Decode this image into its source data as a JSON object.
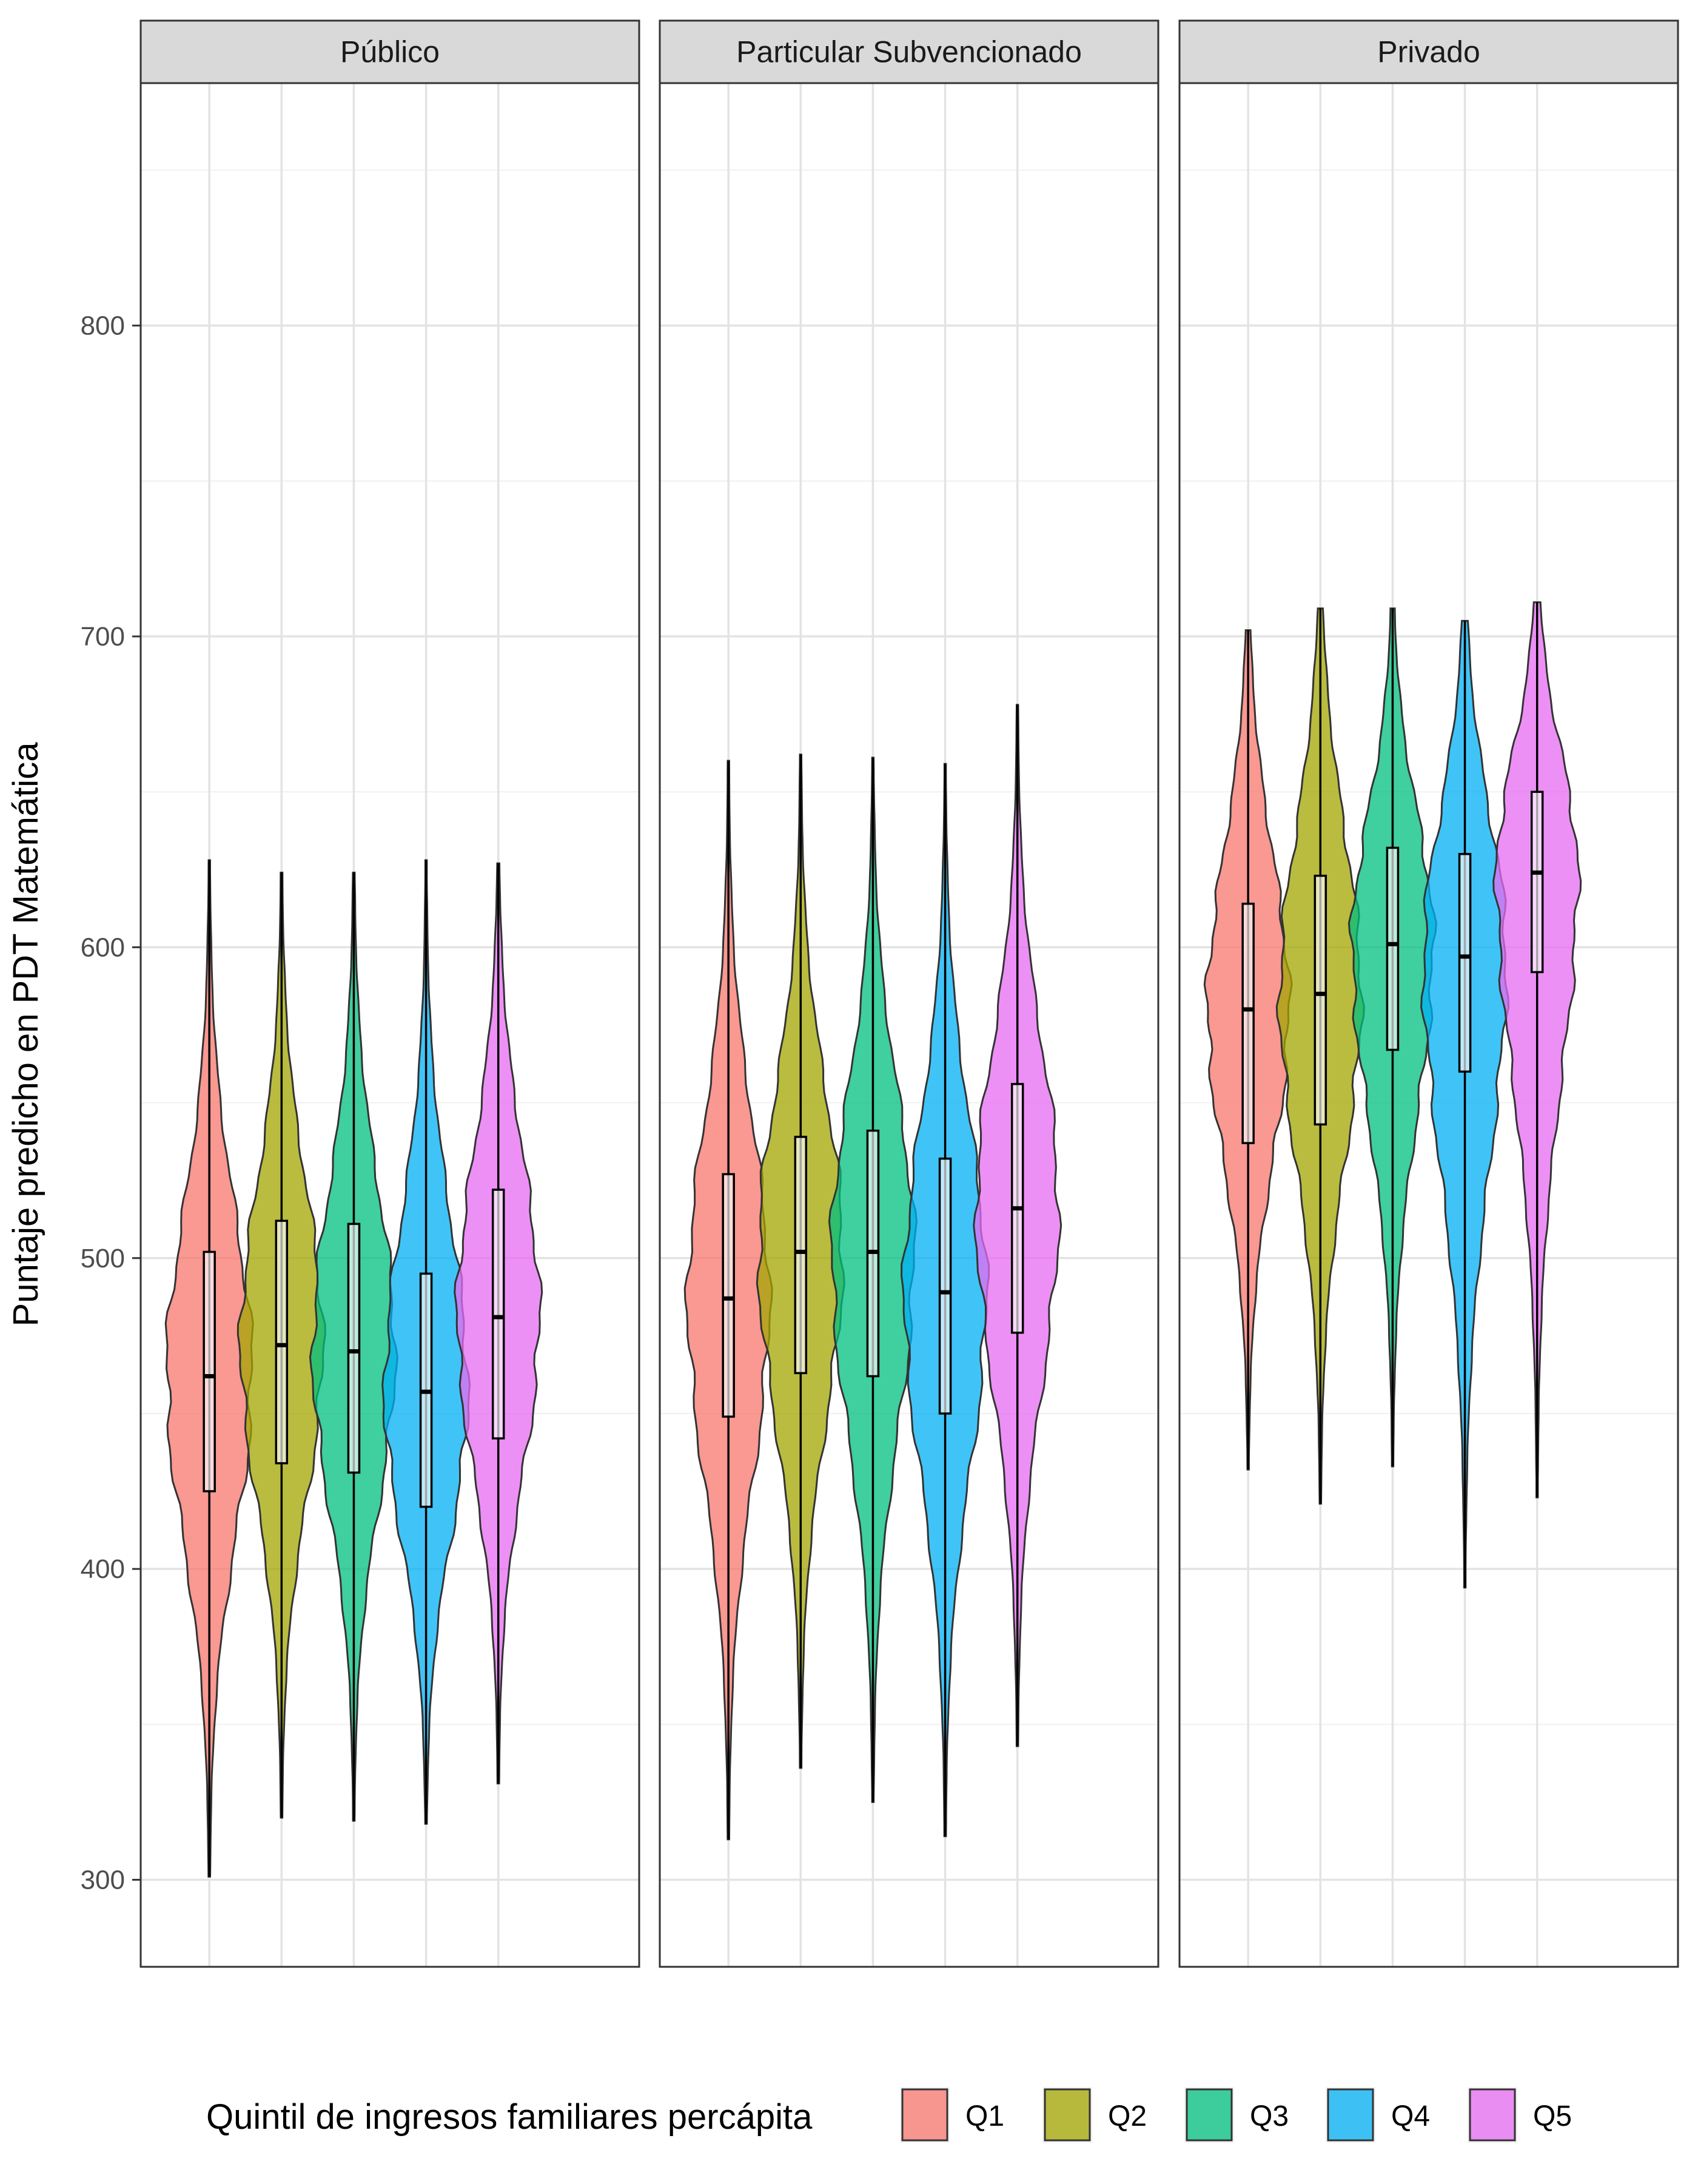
{
  "chart_data": {
    "type": "violin",
    "ylabel": "Puntaje predicho en PDT Matemática",
    "ylim": [
      272,
      878
    ],
    "yticks": [
      300,
      400,
      500,
      600,
      700,
      800
    ],
    "grid": true,
    "legend": {
      "title": "Quintil de ingresos familiares percápita",
      "position": "bottom",
      "items": [
        {
          "label": "Q1",
          "color": "#F8766D"
        },
        {
          "label": "Q2",
          "color": "#A3A500"
        },
        {
          "label": "Q3",
          "color": "#00BF7D"
        },
        {
          "label": "Q4",
          "color": "#00B0F6"
        },
        {
          "label": "Q5",
          "color": "#E76BF3"
        }
      ]
    },
    "panels": [
      {
        "title": "Público",
        "series": [
          {
            "name": "Q1",
            "min": 301,
            "max": 628,
            "q1": 425,
            "median": 462,
            "q3": 502,
            "whisker_low": 301,
            "whisker_high": 628
          },
          {
            "name": "Q2",
            "min": 320,
            "max": 624,
            "q1": 434,
            "median": 472,
            "q3": 512,
            "whisker_low": 320,
            "whisker_high": 624
          },
          {
            "name": "Q3",
            "min": 319,
            "max": 624,
            "q1": 431,
            "median": 470,
            "q3": 511,
            "whisker_low": 319,
            "whisker_high": 624
          },
          {
            "name": "Q4",
            "min": 318,
            "max": 628,
            "q1": 420,
            "median": 457,
            "q3": 495,
            "whisker_low": 318,
            "whisker_high": 628
          },
          {
            "name": "Q5",
            "min": 331,
            "max": 627,
            "q1": 442,
            "median": 481,
            "q3": 522,
            "whisker_low": 331,
            "whisker_high": 627
          }
        ]
      },
      {
        "title": "Particular Subvencionado",
        "series": [
          {
            "name": "Q1",
            "min": 313,
            "max": 660,
            "q1": 449,
            "median": 487,
            "q3": 527,
            "whisker_low": 313,
            "whisker_high": 660
          },
          {
            "name": "Q2",
            "min": 336,
            "max": 662,
            "q1": 463,
            "median": 502,
            "q3": 539,
            "whisker_low": 336,
            "whisker_high": 662
          },
          {
            "name": "Q3",
            "min": 325,
            "max": 661,
            "q1": 462,
            "median": 502,
            "q3": 541,
            "whisker_low": 325,
            "whisker_high": 661
          },
          {
            "name": "Q4",
            "min": 314,
            "max": 659,
            "q1": 450,
            "median": 489,
            "q3": 532,
            "whisker_low": 314,
            "whisker_high": 659
          },
          {
            "name": "Q5",
            "min": 343,
            "max": 678,
            "q1": 476,
            "median": 516,
            "q3": 556,
            "whisker_low": 343,
            "whisker_high": 678
          }
        ]
      },
      {
        "title": "Privado",
        "series": [
          {
            "name": "Q1",
            "min": 432,
            "max": 702,
            "q1": 537,
            "median": 580,
            "q3": 614,
            "whisker_low": 432,
            "whisker_high": 702
          },
          {
            "name": "Q2",
            "min": 421,
            "max": 709,
            "q1": 543,
            "median": 585,
            "q3": 623,
            "whisker_low": 421,
            "whisker_high": 709
          },
          {
            "name": "Q3",
            "min": 433,
            "max": 709,
            "q1": 567,
            "median": 601,
            "q3": 632,
            "whisker_low": 433,
            "whisker_high": 709
          },
          {
            "name": "Q4",
            "min": 394,
            "max": 705,
            "q1": 560,
            "median": 597,
            "q3": 630,
            "whisker_low": 394,
            "whisker_high": 705
          },
          {
            "name": "Q5",
            "min": 423,
            "max": 711,
            "q1": 592,
            "median": 624,
            "q3": 650,
            "whisker_low": 423,
            "whisker_high": 711
          }
        ]
      }
    ]
  }
}
